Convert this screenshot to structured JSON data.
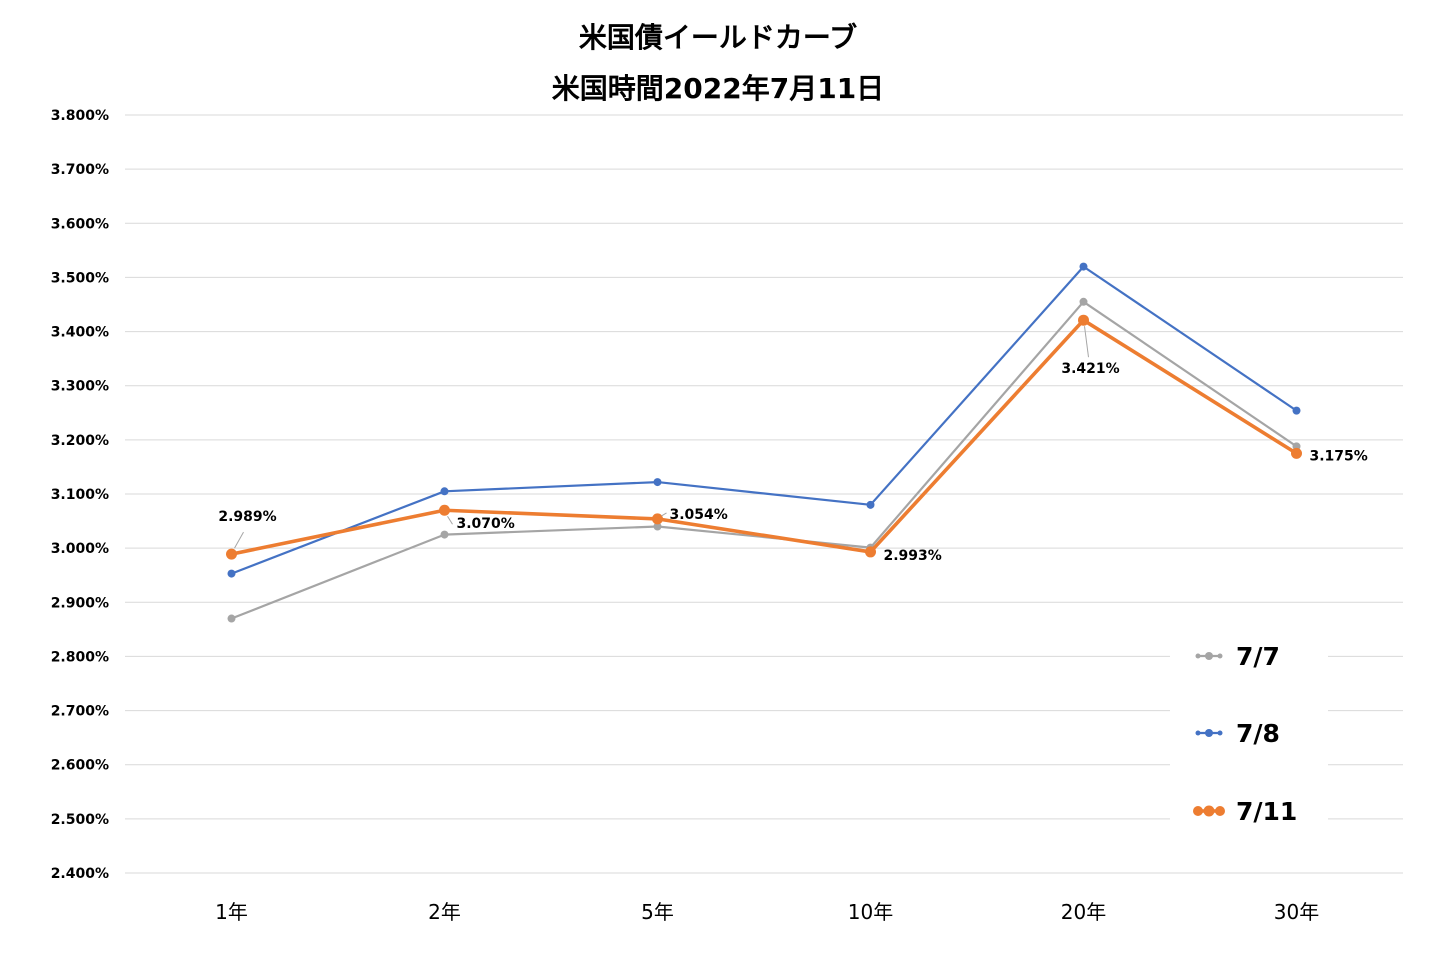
{
  "chart_data": {
    "type": "line",
    "title": "米国債イールドカーブ",
    "subtitle": "米国時間2022年7月11日",
    "categories": [
      "1年",
      "2年",
      "5年",
      "10年",
      "20年",
      "30年"
    ],
    "ylim": [
      2.4,
      3.8
    ],
    "yticklabels": [
      "3.800%",
      "3.700%",
      "3.600%",
      "3.500%",
      "3.400%",
      "3.300%",
      "3.200%",
      "3.100%",
      "3.000%",
      "2.900%",
      "2.800%",
      "2.700%",
      "2.600%",
      "2.500%",
      "2.400%"
    ],
    "grid": true,
    "legend": "bottom-right",
    "series": [
      {
        "name": "7/7",
        "values": [
          2.87,
          3.025,
          3.04,
          3.001,
          3.455,
          3.188
        ],
        "color": "#A5A5A5"
      },
      {
        "name": "7/8",
        "values": [
          2.953,
          3.105,
          3.122,
          3.08,
          3.52,
          3.254
        ],
        "color": "#4472C4"
      },
      {
        "name": "7/11",
        "values": [
          2.989,
          3.07,
          3.054,
          2.993,
          3.421,
          3.175
        ],
        "color": "#ED7D31",
        "data_labels": [
          "2.989%",
          "3.070%",
          "3.054%",
          "2.993%",
          "3.421%",
          "3.175%"
        ]
      }
    ]
  }
}
